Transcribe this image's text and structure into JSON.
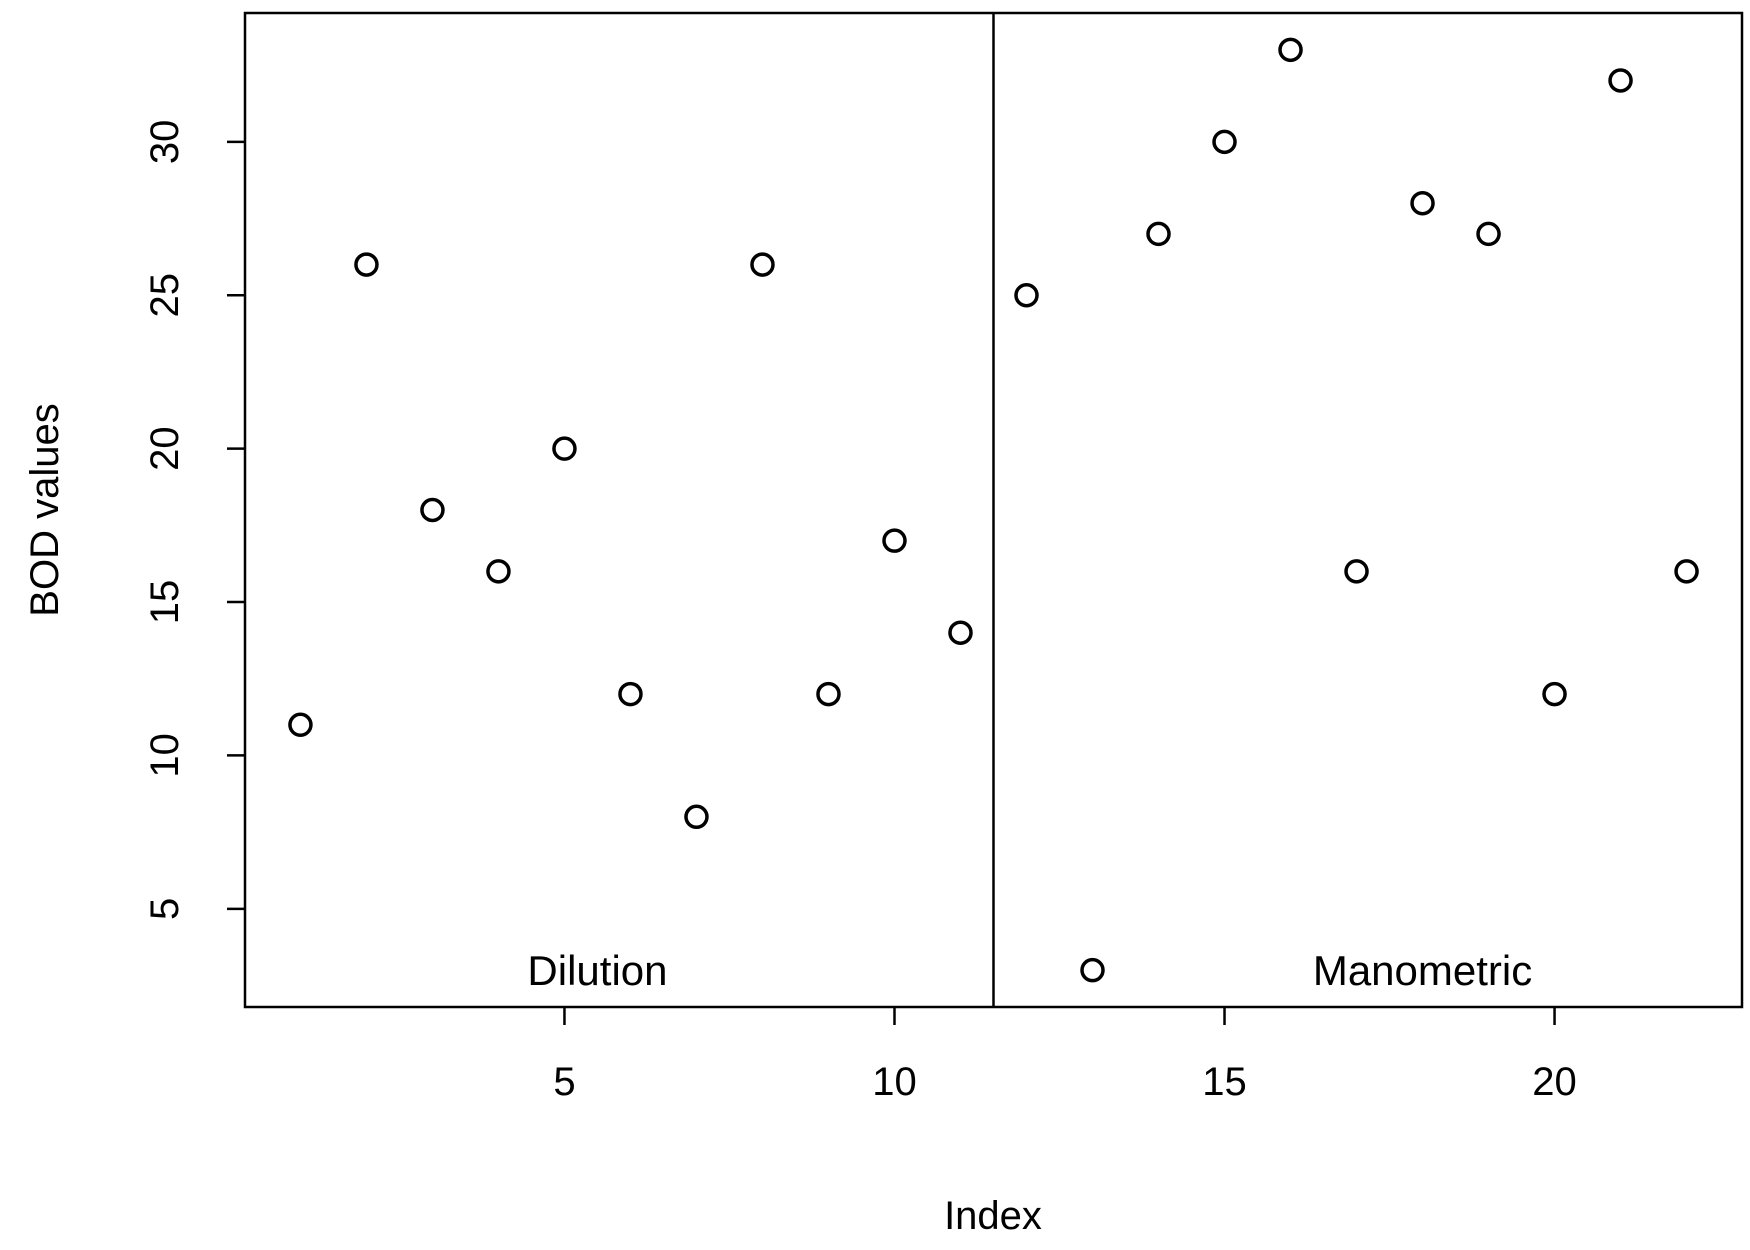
{
  "chart_data": {
    "type": "scatter",
    "title": "",
    "xlabel": "Index",
    "ylabel": "BOD values",
    "xlim": [
      0.16,
      22.84
    ],
    "ylim": [
      1.8,
      34.2
    ],
    "x_ticks": [
      5,
      10,
      15,
      20
    ],
    "y_ticks": [
      5,
      10,
      15,
      20,
      25,
      30
    ],
    "grid": false,
    "separator_x": 11.5,
    "group_labels": [
      {
        "text": "Dilution",
        "x": 5.5,
        "y": 3
      },
      {
        "text": "Manometric",
        "x": 18,
        "y": 3
      }
    ],
    "x": [
      1,
      2,
      3,
      4,
      5,
      6,
      7,
      8,
      9,
      10,
      11,
      12,
      13,
      14,
      15,
      16,
      17,
      18,
      19,
      20,
      21,
      22
    ],
    "y": [
      11,
      26,
      18,
      16,
      20,
      12,
      8,
      26,
      12,
      17,
      14,
      25,
      3,
      27,
      30,
      33,
      16,
      28,
      27,
      12,
      32,
      16
    ]
  }
}
